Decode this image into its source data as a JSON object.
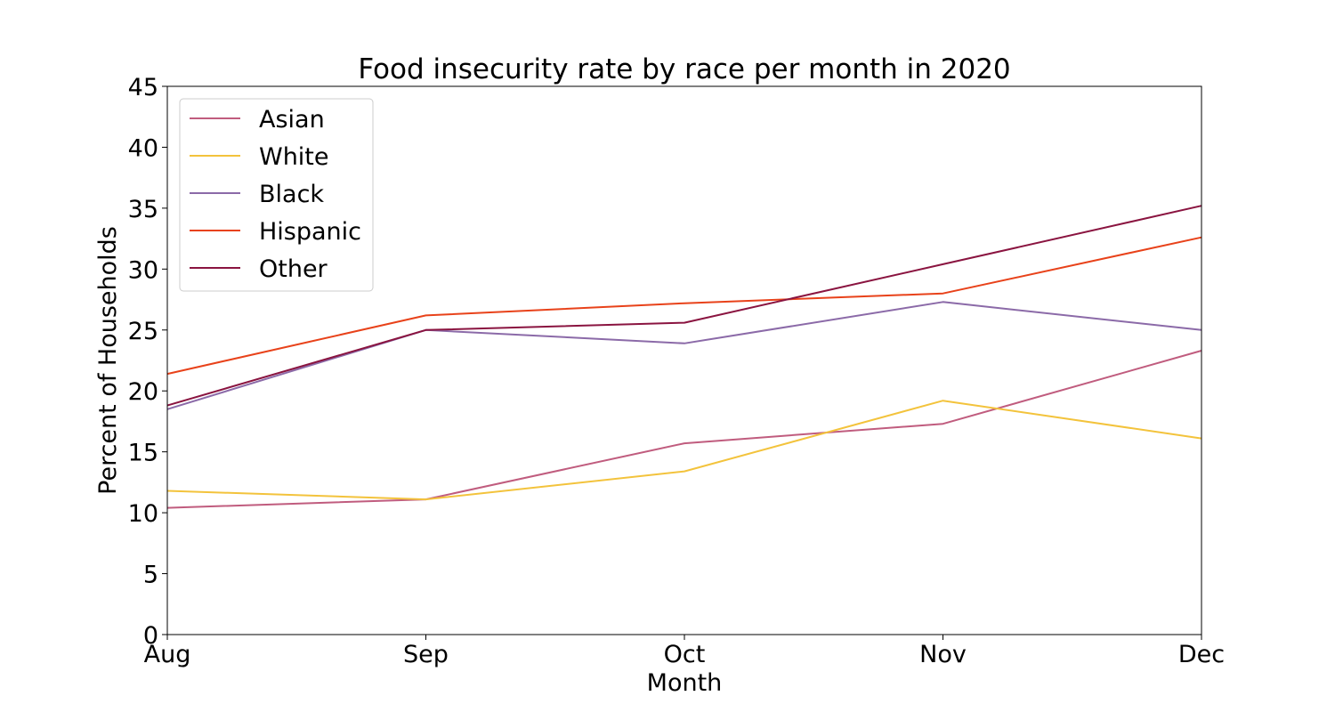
{
  "chart_data": {
    "type": "line",
    "title": "Food insecurity rate by race per month in 2020",
    "xlabel": "Month",
    "ylabel": "Percent of Households",
    "categories": [
      "Aug",
      "Sep",
      "Oct",
      "Nov",
      "Dec"
    ],
    "ylim": [
      0,
      45
    ],
    "yticks": [
      "0",
      "5",
      "10",
      "15",
      "20",
      "25",
      "30",
      "35",
      "40",
      "45"
    ],
    "grid": false,
    "legend_position": "top-left",
    "series": [
      {
        "name": "Asian",
        "color": "#c05c7e",
        "values": [
          10.4,
          11.1,
          15.7,
          17.3,
          23.3
        ]
      },
      {
        "name": "White",
        "color": "#f3c33c",
        "values": [
          11.8,
          11.1,
          13.4,
          19.2,
          16.1
        ]
      },
      {
        "name": "Black",
        "color": "#8b6aa8",
        "values": [
          18.5,
          25.0,
          23.9,
          27.3,
          25.0
        ]
      },
      {
        "name": "Hispanic",
        "color": "#e8421a",
        "values": [
          21.4,
          26.2,
          27.2,
          28.0,
          32.6
        ]
      },
      {
        "name": "Other",
        "color": "#8a1440",
        "values": [
          18.8,
          25.0,
          25.6,
          30.4,
          35.2
        ]
      }
    ]
  }
}
